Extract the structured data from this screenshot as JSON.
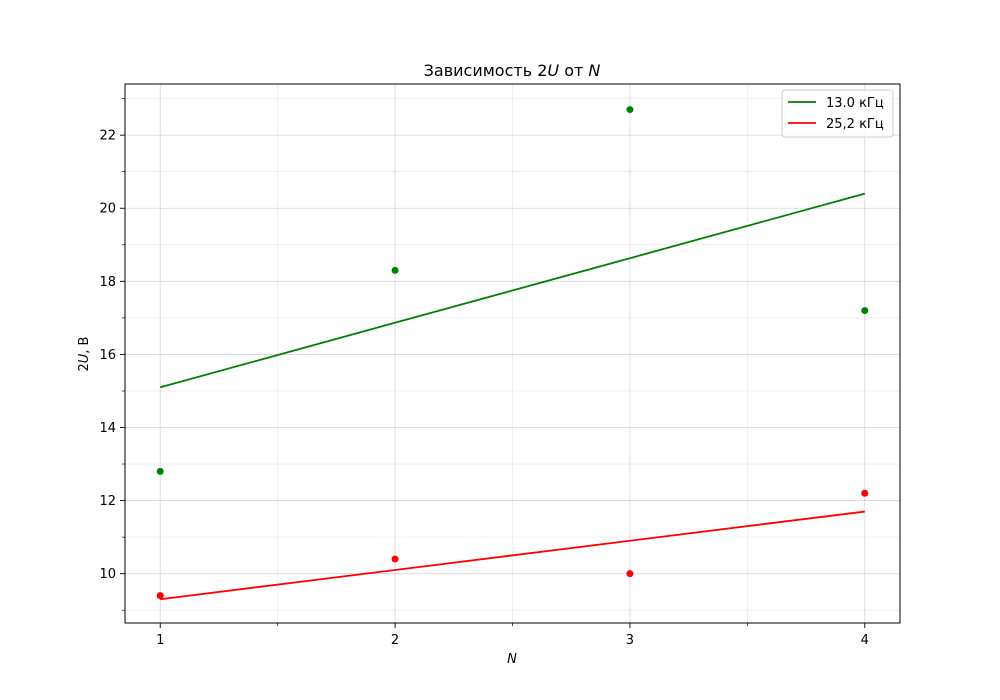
{
  "chart_data": {
    "type": "scatter",
    "title_prefix": "Зависимость 2",
    "title_var1": "U",
    "title_mid": " от ",
    "title_var2": "N",
    "xlabel": "N",
    "ylabel_prefix": "2",
    "ylabel_var": "U",
    "ylabel_suffix": ", В",
    "xlim": [
      0.85,
      4.15
    ],
    "ylim": [
      8.65,
      23.4
    ],
    "xticks": [
      1,
      2,
      3,
      4
    ],
    "xtick_labels": [
      "1",
      "2",
      "3",
      "4"
    ],
    "xminor": [
      1.5,
      2.5,
      3.5
    ],
    "yticks": [
      10,
      12,
      14,
      16,
      18,
      20,
      22
    ],
    "ytick_labels": [
      "10",
      "12",
      "14",
      "16",
      "18",
      "20",
      "22"
    ],
    "yminor": [
      9,
      11,
      13,
      15,
      17,
      19,
      21,
      23
    ],
    "grid": true,
    "legend_position": "top-right",
    "series": [
      {
        "name": "13.0 кГц",
        "color": "#008000",
        "x": [
          1,
          2,
          3,
          4
        ],
        "points": [
          12.8,
          18.3,
          22.7,
          17.2
        ],
        "fit": [
          15.1,
          20.4
        ]
      },
      {
        "name": "25,2 кГц",
        "color": "#ff0000",
        "x": [
          1,
          2,
          3,
          4
        ],
        "points": [
          9.4,
          10.4,
          10.0,
          12.2
        ],
        "fit": [
          9.3,
          11.7
        ]
      }
    ]
  }
}
